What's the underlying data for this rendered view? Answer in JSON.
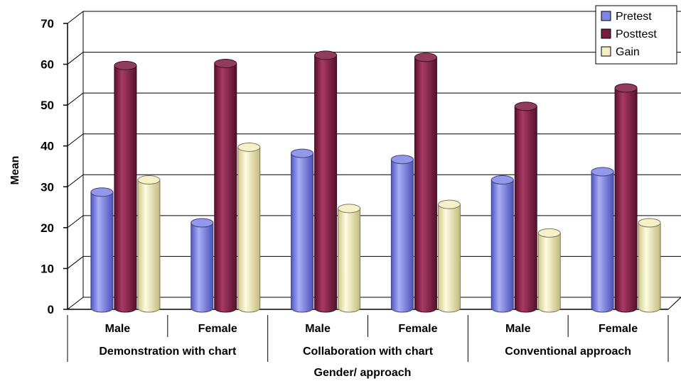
{
  "chart_data": {
    "type": "bar",
    "title": "",
    "xlabel": "Gender/ approach",
    "ylabel": "Mean",
    "ylim": [
      0,
      70
    ],
    "yticks": [
      "0",
      "10",
      "20",
      "30",
      "40",
      "50",
      "60",
      "70"
    ],
    "groups": [
      "Demonstration with chart",
      "Collaboration with chart",
      "Conventional approach"
    ],
    "categories": [
      "Male",
      "Female",
      "Male",
      "Female",
      "Male",
      "Female"
    ],
    "series": [
      {
        "name": "Pretest",
        "values": [
          28,
          20.5,
          37.5,
          36,
          31,
          33
        ],
        "color": "#7f86e8"
      },
      {
        "name": "Posttest",
        "values": [
          59,
          59.5,
          61.5,
          61,
          49,
          53.5
        ],
        "color": "#7b1a40"
      },
      {
        "name": "Gain",
        "values": [
          31,
          39,
          24,
          25,
          18,
          20.5
        ],
        "color": "#f4efc0"
      }
    ],
    "grid": true,
    "legend": "top-right"
  }
}
